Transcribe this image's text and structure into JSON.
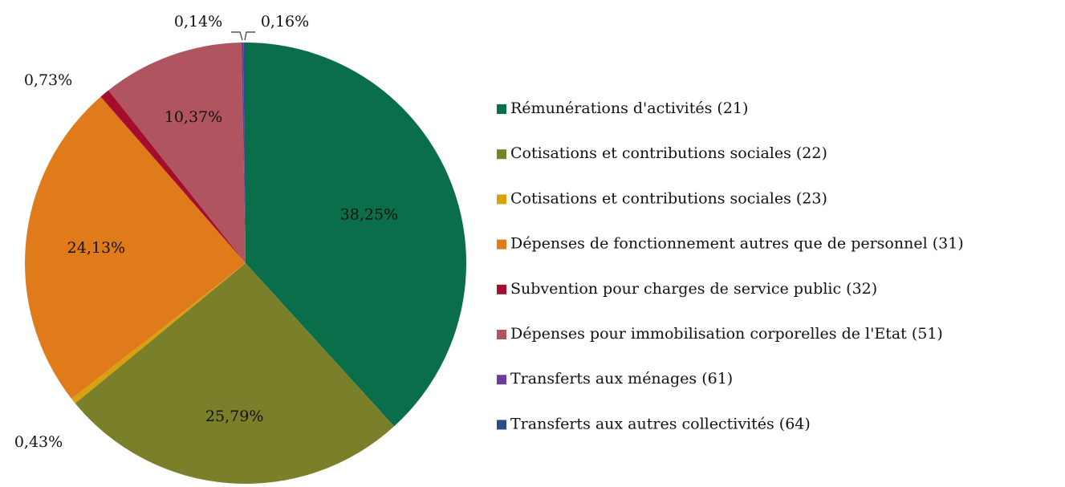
{
  "chart_data": {
    "type": "pie",
    "categories": [
      "Rémunérations d'activités (21)",
      "Cotisations et contributions sociales (22)",
      "Cotisations et contributions sociales (23)",
      "Dépenses de fonctionnement autres que de personnel (31)",
      "Subvention pour charges de service public (32)",
      "Dépenses pour immobilisation corporelles de l'Etat (51)",
      "Transferts aux ménages (61)",
      "Transferts aux autres collectivités (64)"
    ],
    "values": [
      38.25,
      25.79,
      0.43,
      24.13,
      0.73,
      10.37,
      0.14,
      0.16
    ],
    "value_labels": [
      "38,25%",
      "25,79%",
      "0,43%",
      "24,13%",
      "0,73%",
      "10,37%",
      "0,14%",
      "0,16%"
    ],
    "colors": [
      "#0b6e4a",
      "#7a7f2a",
      "#d9a00f",
      "#e07b1c",
      "#a50d2e",
      "#b05560",
      "#6a3d9a",
      "#2a4d8a"
    ],
    "legend": "right"
  }
}
